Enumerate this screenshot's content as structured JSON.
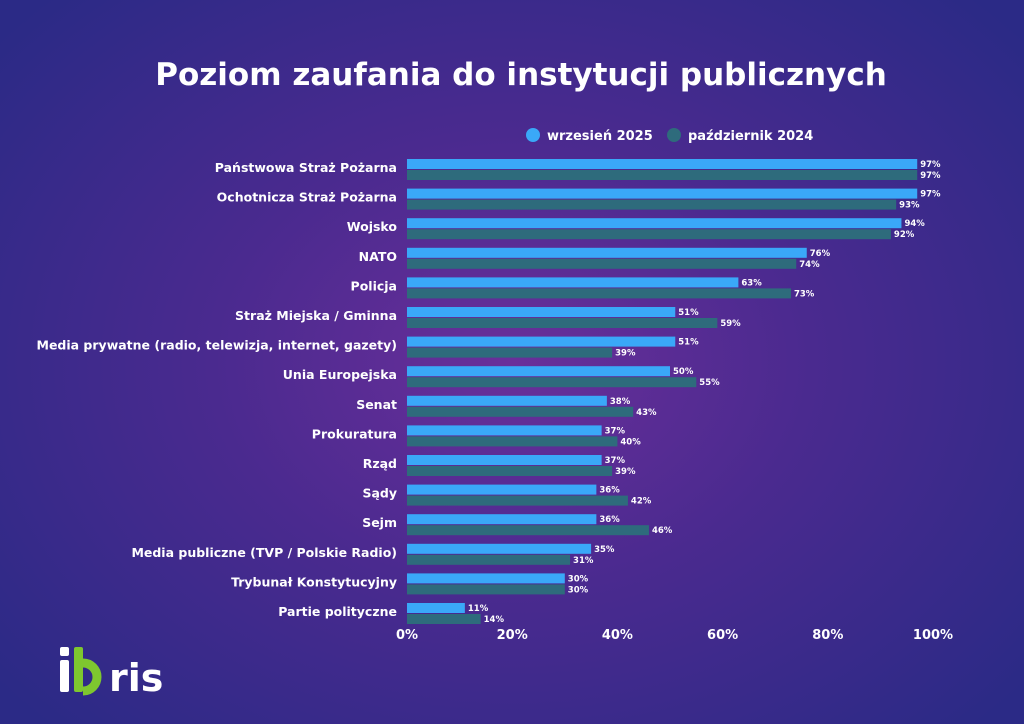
{
  "chart_data": {
    "type": "bar",
    "orientation": "horizontal",
    "title": "Poziom zaufania do instytucji publicznych",
    "categories": [
      "Państwowa Straż Pożarna",
      "Ochotnicza Straż Pożarna",
      "Wojsko",
      "NATO",
      "Policja",
      "Straż Miejska / Gminna",
      "Media prywatne (radio, telewizja, internet, gazety)",
      "Unia Europejska",
      "Senat",
      "Prokuratura",
      "Rząd",
      "Sądy",
      "Sejm",
      "Media publiczne (TVP / Polskie Radio)",
      "Trybunał Konstytucyjny",
      "Partie polityczne"
    ],
    "series": [
      {
        "name": "wrzesień 2025",
        "color": "#3aa8f8",
        "values": [
          97,
          97,
          94,
          76,
          63,
          51,
          51,
          50,
          38,
          37,
          37,
          36,
          36,
          35,
          30,
          11
        ],
        "labels": [
          "97%",
          "97%",
          "94%",
          "76%",
          "63%",
          "51%",
          "51%",
          "50%",
          "38%",
          "37%",
          "37%",
          "36%",
          "36%",
          "35%",
          "30%",
          "11%"
        ]
      },
      {
        "name": "październik 2024",
        "color": "#2e6b7c",
        "values": [
          97,
          93,
          92,
          74,
          73,
          59,
          39,
          55,
          43,
          40,
          39,
          42,
          46,
          31,
          30,
          14
        ],
        "labels": [
          "97%",
          "93%",
          "92%",
          "74%",
          "73%",
          "59%",
          "39%",
          "55%",
          "43%",
          "40%",
          "39%",
          "42%",
          "46%",
          "31%",
          "30%",
          "14%"
        ]
      }
    ],
    "xlim": [
      0,
      100
    ],
    "xticks": [
      "0%",
      "20%",
      "40%",
      "60%",
      "80%",
      "100%"
    ],
    "legend_position": "top-right"
  },
  "logo": {
    "icon": "ibris-logo",
    "text": "ibris"
  }
}
